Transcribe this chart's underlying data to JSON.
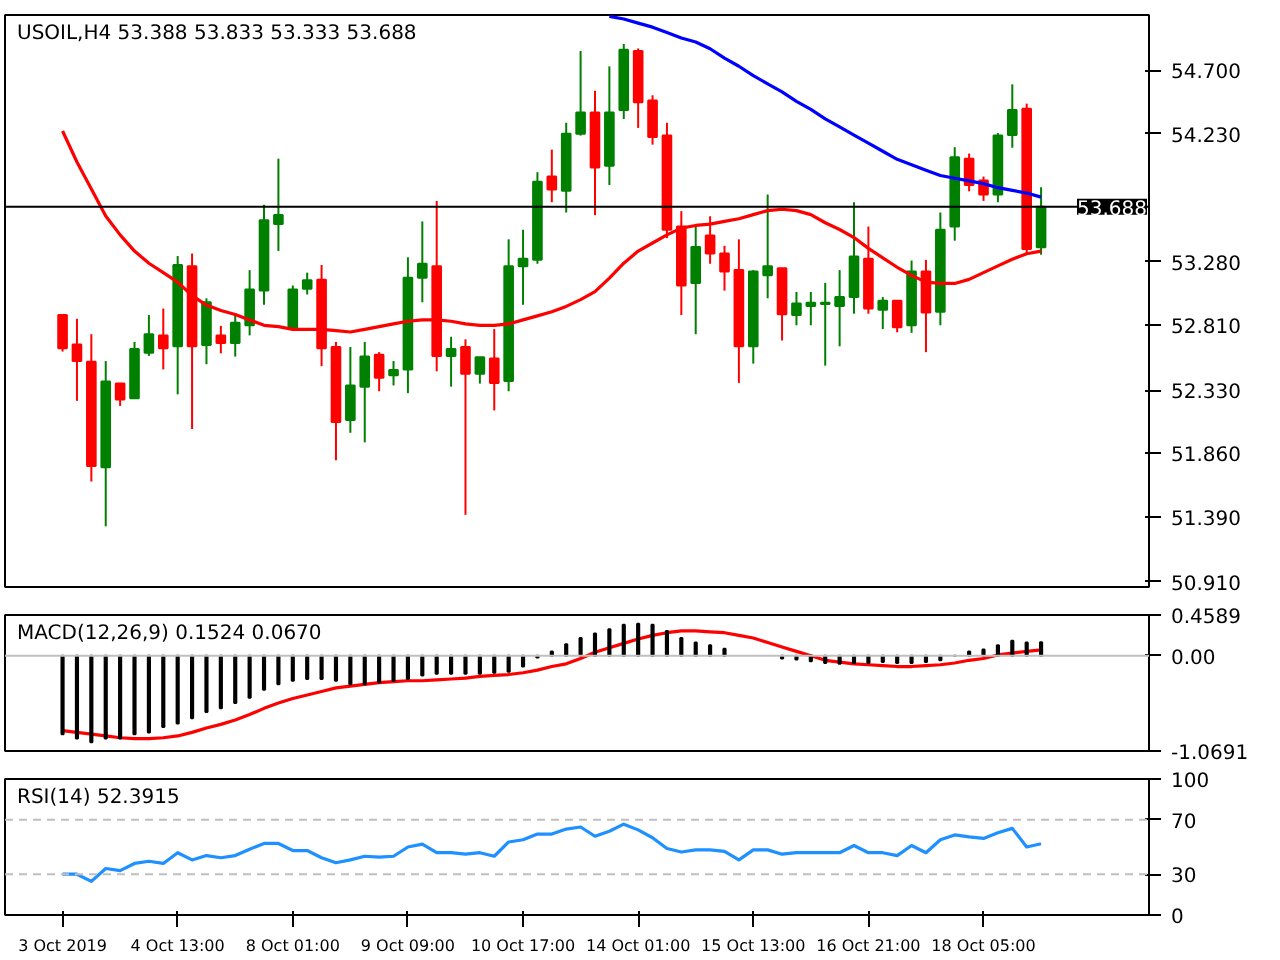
{
  "chart_data": [
    {
      "type": "candlestick",
      "title": "USOIL,H4  53.388 53.833 53.333 53.688",
      "categories": [
        null,
        null,
        null,
        null,
        null,
        null,
        null,
        null,
        null,
        null,
        null,
        null,
        null,
        null,
        null,
        null,
        null,
        null,
        null,
        null,
        null,
        null,
        null,
        null,
        null,
        null,
        null,
        null,
        null,
        null,
        null,
        null,
        null,
        null,
        null,
        null,
        null,
        null,
        null,
        null,
        null,
        null,
        null,
        null,
        null,
        null,
        null,
        null,
        null,
        null,
        null,
        null,
        null,
        null,
        null,
        null,
        null,
        null,
        null,
        null,
        null,
        null,
        null,
        null,
        null,
        null,
        null,
        null,
        null
      ],
      "ohlc": [
        [
          52.886,
          52.886,
          52.615,
          52.639
        ],
        [
          52.668,
          52.858,
          52.25,
          52.545
        ],
        [
          52.54,
          52.744,
          51.652,
          51.766
        ],
        [
          51.757,
          52.545,
          51.32,
          52.393
        ],
        [
          52.378,
          52.378,
          52.212,
          52.26
        ],
        [
          52.269,
          52.687,
          52.269,
          52.635
        ],
        [
          52.606,
          52.886,
          52.583,
          52.744
        ],
        [
          52.735,
          52.934,
          52.483,
          52.639
        ],
        [
          52.654,
          53.323,
          52.298,
          53.257
        ],
        [
          53.247,
          53.342,
          52.041,
          52.654
        ],
        [
          52.663,
          53.01,
          52.521,
          52.981
        ],
        [
          52.735,
          52.806,
          52.602,
          52.678
        ],
        [
          52.678,
          52.886,
          52.578,
          52.829
        ],
        [
          52.81,
          53.219,
          52.735,
          53.076
        ],
        [
          53.067,
          53.703,
          52.962,
          53.589
        ],
        [
          53.561,
          54.045,
          53.361,
          53.627
        ],
        [
          52.782,
          53.105,
          52.782,
          53.076
        ],
        [
          53.081,
          53.2,
          53.038,
          53.143
        ],
        [
          53.148,
          53.257,
          52.507,
          52.639
        ],
        [
          52.649,
          52.687,
          51.809,
          52.094
        ],
        [
          52.108,
          52.649,
          52.013,
          52.364
        ],
        [
          52.355,
          52.687,
          51.942,
          52.578
        ],
        [
          52.592,
          52.611,
          52.321,
          52.421
        ],
        [
          52.44,
          52.545,
          52.364,
          52.478
        ],
        [
          52.483,
          53.314,
          52.307,
          53.162
        ],
        [
          53.162,
          53.58,
          52.981,
          53.266
        ],
        [
          53.247,
          53.732,
          52.469,
          52.583
        ],
        [
          52.583,
          52.725,
          52.355,
          52.635
        ],
        [
          52.649,
          52.706,
          51.405,
          52.45
        ],
        [
          52.45,
          52.573,
          52.378,
          52.573
        ],
        [
          52.564,
          52.782,
          52.179,
          52.383
        ],
        [
          52.397,
          53.447,
          52.321,
          53.247
        ],
        [
          53.247,
          53.518,
          52.962,
          53.304
        ],
        [
          53.295,
          53.945,
          53.266,
          53.874
        ],
        [
          53.912,
          54.112,
          53.722,
          53.817
        ],
        [
          53.807,
          54.311,
          53.646,
          54.23
        ],
        [
          54.23,
          54.843,
          54.216,
          54.387
        ],
        [
          54.387,
          54.548,
          53.627,
          53.979
        ],
        [
          53.993,
          54.729,
          53.85,
          54.387
        ],
        [
          54.406,
          54.895,
          54.339,
          54.852
        ],
        [
          54.843,
          54.862,
          54.273,
          54.463
        ],
        [
          54.477,
          54.515,
          54.149,
          54.206
        ],
        [
          54.216,
          54.311,
          53.456,
          53.518
        ],
        [
          53.542,
          53.656,
          52.886,
          53.105
        ],
        [
          53.124,
          53.542,
          52.744,
          53.39
        ],
        [
          53.475,
          53.618,
          53.266,
          53.342
        ],
        [
          53.342,
          53.399,
          53.067,
          53.209
        ],
        [
          53.219,
          53.447,
          52.383,
          52.654
        ],
        [
          52.654,
          53.219,
          52.526,
          53.209
        ],
        [
          53.181,
          53.779,
          53.01,
          53.247
        ],
        [
          53.233,
          53.233,
          52.697,
          52.891
        ],
        [
          52.886,
          53.057,
          52.81,
          52.972
        ],
        [
          52.953,
          53.057,
          52.81,
          52.977
        ],
        [
          52.967,
          53.124,
          52.511,
          52.977
        ],
        [
          52.953,
          53.219,
          52.654,
          53.019
        ],
        [
          53.019,
          53.722,
          52.896,
          53.319
        ],
        [
          53.304,
          53.542,
          52.896,
          52.934
        ],
        [
          52.925,
          53.019,
          52.782,
          52.991
        ],
        [
          52.991,
          52.991,
          52.758,
          52.796
        ],
        [
          52.81,
          53.29,
          52.754,
          53.209
        ],
        [
          53.209,
          53.295,
          52.611,
          52.905
        ],
        [
          52.91,
          53.646,
          52.81,
          53.518
        ],
        [
          53.542,
          54.13,
          53.437,
          54.055
        ],
        [
          54.045,
          54.083,
          53.803,
          53.85
        ],
        [
          53.883,
          53.912,
          53.732,
          53.779
        ],
        [
          53.779,
          54.235,
          53.722,
          54.216
        ],
        [
          54.221,
          54.596,
          54.126,
          54.406
        ],
        [
          54.415,
          54.453,
          53.342,
          53.376
        ],
        [
          53.388,
          53.833,
          53.333,
          53.688
        ]
      ],
      "colors": [
        "#ff0000",
        "#ff0000",
        "#ff0000",
        "#008000",
        "#ff0000",
        "#008000",
        "#008000",
        "#ff0000",
        "#008000",
        "#ff0000",
        "#008000",
        "#ff0000",
        "#008000",
        "#008000",
        "#008000",
        "#008000",
        "#008000",
        "#008000",
        "#ff0000",
        "#ff0000",
        "#008000",
        "#008000",
        "#ff0000",
        "#008000",
        "#008000",
        "#008000",
        "#ff0000",
        "#008000",
        "#ff0000",
        "#008000",
        "#ff0000",
        "#008000",
        "#008000",
        "#008000",
        "#ff0000",
        "#008000",
        "#008000",
        "#ff0000",
        "#008000",
        "#008000",
        "#ff0000",
        "#ff0000",
        "#ff0000",
        "#ff0000",
        "#008000",
        "#ff0000",
        "#ff0000",
        "#ff0000",
        "#008000",
        "#008000",
        "#ff0000",
        "#008000",
        "#008000",
        "#008000",
        "#008000",
        "#008000",
        "#ff0000",
        "#008000",
        "#ff0000",
        "#008000",
        "#ff0000",
        "#008000",
        "#008000",
        "#ff0000",
        "#ff0000",
        "#008000",
        "#008000",
        "#ff0000",
        "#008000"
      ],
      "series": [
        {
          "type": "line",
          "color": "#ff0000",
          "values": [
            54.25,
            54.02,
            53.82,
            53.62,
            53.48,
            53.36,
            53.27,
            53.2,
            53.13,
            53.03,
            52.96,
            52.92,
            52.89,
            52.85,
            52.81,
            52.8,
            52.78,
            52.78,
            52.78,
            52.77,
            52.76,
            52.78,
            52.8,
            52.82,
            52.84,
            52.85,
            52.85,
            52.84,
            52.82,
            52.81,
            52.81,
            52.82,
            52.85,
            52.88,
            52.91,
            52.95,
            53.0,
            53.06,
            53.16,
            53.27,
            53.36,
            53.42,
            53.48,
            53.53,
            53.55,
            53.56,
            53.58,
            53.6,
            53.63,
            53.66,
            53.67,
            53.66,
            53.63,
            53.57,
            53.52,
            53.46,
            53.38,
            53.31,
            53.24,
            53.18,
            53.13,
            53.12,
            53.12,
            53.15,
            53.2,
            53.25,
            53.3,
            53.34,
            53.36
          ]
        },
        {
          "type": "line",
          "color": "#0000ff",
          "values": [
            null,
            null,
            null,
            null,
            null,
            null,
            null,
            null,
            null,
            null,
            null,
            null,
            null,
            null,
            null,
            null,
            null,
            null,
            null,
            null,
            null,
            null,
            null,
            null,
            null,
            null,
            null,
            null,
            null,
            null,
            null,
            null,
            null,
            null,
            null,
            null,
            null,
            null,
            55.1,
            55.08,
            55.05,
            55.02,
            54.98,
            54.94,
            54.91,
            54.86,
            54.79,
            54.73,
            54.66,
            54.6,
            54.54,
            54.47,
            54.41,
            54.34,
            54.28,
            54.22,
            54.16,
            54.1,
            54.04,
            54.0,
            53.96,
            53.92,
            53.9,
            53.88,
            53.86,
            53.83,
            53.81,
            53.79,
            53.76
          ]
        }
      ],
      "ylim": [
        50.87,
        55.11
      ],
      "yticks": [
        {
          "value": 54.7,
          "label": "54.700"
        },
        {
          "value": 54.23,
          "label": "54.230"
        },
        {
          "value": 53.28,
          "label": "53.280"
        },
        {
          "value": 52.81,
          "label": "52.810"
        },
        {
          "value": 52.33,
          "label": "52.330"
        },
        {
          "value": 51.86,
          "label": "51.860"
        },
        {
          "value": 51.39,
          "label": "51.390"
        },
        {
          "value": 50.91,
          "label": "50.910"
        }
      ],
      "ref_lines": [
        {
          "axis": "y",
          "value": 53.688,
          "label": "53.688",
          "color": "#000000"
        }
      ],
      "tick_labels": "y"
    },
    {
      "type": "bar",
      "title": "MACD(12,26,9) 0.1524 0.0670",
      "categories": [
        null,
        null,
        null,
        null,
        null,
        null,
        null,
        null,
        null,
        null,
        null,
        null,
        null,
        null,
        null,
        null,
        null,
        null,
        null,
        null,
        null,
        null,
        null,
        null,
        null,
        null,
        null,
        null,
        null,
        null,
        null,
        null,
        null,
        null,
        null,
        null,
        null,
        null,
        null,
        null,
        null,
        null,
        null,
        null,
        null,
        null,
        null,
        null,
        null,
        null,
        null,
        null,
        null,
        null,
        null,
        null,
        null,
        null,
        null,
        null,
        null,
        null,
        null,
        null,
        null,
        null,
        null,
        null,
        null
      ],
      "series": [
        {
          "type": "bar",
          "color": "#000000",
          "values": [
            -0.88,
            -0.93,
            -0.97,
            -0.93,
            -0.93,
            -0.88,
            -0.86,
            -0.8,
            -0.76,
            -0.7,
            -0.63,
            -0.59,
            -0.53,
            -0.47,
            -0.38,
            -0.32,
            -0.28,
            -0.26,
            -0.26,
            -0.28,
            -0.32,
            -0.32,
            -0.3,
            -0.28,
            -0.26,
            -0.22,
            -0.2,
            -0.2,
            -0.2,
            -0.2,
            -0.19,
            -0.18,
            -0.12,
            -0.02,
            0.05,
            0.13,
            0.2,
            0.25,
            0.3,
            0.35,
            0.36,
            0.35,
            0.28,
            0.2,
            0.15,
            0.12,
            0.08,
            null,
            null,
            null,
            -0.03,
            -0.04,
            -0.06,
            -0.08,
            -0.09,
            -0.08,
            -0.08,
            -0.07,
            -0.08,
            -0.08,
            -0.07,
            -0.05,
            0.0,
            0.05,
            0.07,
            0.12,
            0.17,
            0.15,
            0.1524
          ]
        },
        {
          "type": "line",
          "color": "#ff0000",
          "values": [
            -0.84,
            -0.86,
            -0.88,
            -0.9,
            -0.92,
            -0.93,
            -0.93,
            -0.92,
            -0.9,
            -0.86,
            -0.81,
            -0.77,
            -0.72,
            -0.66,
            -0.59,
            -0.53,
            -0.48,
            -0.44,
            -0.4,
            -0.36,
            -0.34,
            -0.32,
            -0.3,
            -0.29,
            -0.28,
            -0.28,
            -0.27,
            -0.26,
            -0.25,
            -0.23,
            -0.22,
            -0.21,
            -0.19,
            -0.16,
            -0.12,
            -0.09,
            -0.03,
            0.04,
            0.09,
            0.14,
            0.19,
            0.23,
            0.26,
            0.28,
            0.28,
            0.27,
            0.26,
            0.23,
            0.2,
            0.15,
            0.1,
            0.05,
            0.0,
            -0.05,
            -0.07,
            -0.09,
            -0.1,
            -0.11,
            -0.12,
            -0.12,
            -0.11,
            -0.1,
            -0.08,
            -0.05,
            -0.03,
            0.01,
            0.03,
            0.05,
            0.067
          ]
        }
      ],
      "ylim": [
        -1.0691,
        0.4589
      ],
      "yticks": [
        {
          "value": 0.4589,
          "label": "0.4589"
        },
        {
          "value": 0,
          "label": "0.00"
        },
        {
          "value": -1.0691,
          "label": "-1.0691"
        }
      ],
      "ref_lines": [
        {
          "axis": "y",
          "value": 0,
          "color": "#c0c0c0"
        }
      ],
      "tick_labels": "y"
    },
    {
      "type": "line",
      "title": "RSI(14) 52.3915",
      "categories": [
        "3 Oct 2019",
        null,
        null,
        null,
        null,
        null,
        null,
        null,
        "4 Oct 13:00",
        null,
        null,
        null,
        null,
        null,
        null,
        null,
        "8 Oct 01:00",
        null,
        null,
        null,
        null,
        null,
        null,
        null,
        "9 Oct 09:00",
        null,
        null,
        null,
        null,
        null,
        null,
        null,
        "10 Oct 17:00",
        null,
        null,
        null,
        null,
        null,
        null,
        null,
        "14 Oct 01:00",
        null,
        null,
        null,
        null,
        null,
        null,
        null,
        "15 Oct 13:00",
        null,
        null,
        null,
        null,
        null,
        null,
        null,
        "16 Oct 21:00",
        null,
        null,
        null,
        null,
        null,
        null,
        null,
        "18 Oct 05:00",
        null,
        null,
        null,
        null
      ],
      "series": [
        {
          "color": "#1e90ff",
          "values": [
            30,
            30,
            24.7,
            34.2,
            32.6,
            37.9,
            39.5,
            37.9,
            45.8,
            40.5,
            43.7,
            42.1,
            43.7,
            48.4,
            52.6,
            52.6,
            47.4,
            47.4,
            42.1,
            38.4,
            40.5,
            43.2,
            42.6,
            43.2,
            50,
            52.1,
            45.8,
            45.8,
            44.7,
            45.8,
            43.2,
            53.7,
            55.3,
            59.5,
            59.5,
            63.2,
            64.7,
            57.9,
            61.6,
            66.8,
            62.6,
            56.8,
            48.9,
            46.3,
            47.9,
            47.9,
            46.8,
            40.5,
            47.9,
            47.9,
            44.7,
            45.8,
            45.8,
            45.8,
            45.8,
            51.1,
            45.8,
            45.8,
            43.7,
            51.1,
            45.8,
            55.3,
            58.9,
            57.4,
            56.3,
            60.5,
            63.7,
            50,
            52.39
          ]
        }
      ],
      "ylim": [
        0,
        100
      ],
      "yticks": [
        100,
        70,
        30,
        0
      ],
      "ref_lines": [
        {
          "axis": "y",
          "value": 70,
          "color": "#c0c0c0",
          "line_style": "dashed"
        },
        {
          "axis": "y",
          "value": 30,
          "color": "#c0c0c0",
          "line_style": "dashed"
        }
      ]
    }
  ]
}
